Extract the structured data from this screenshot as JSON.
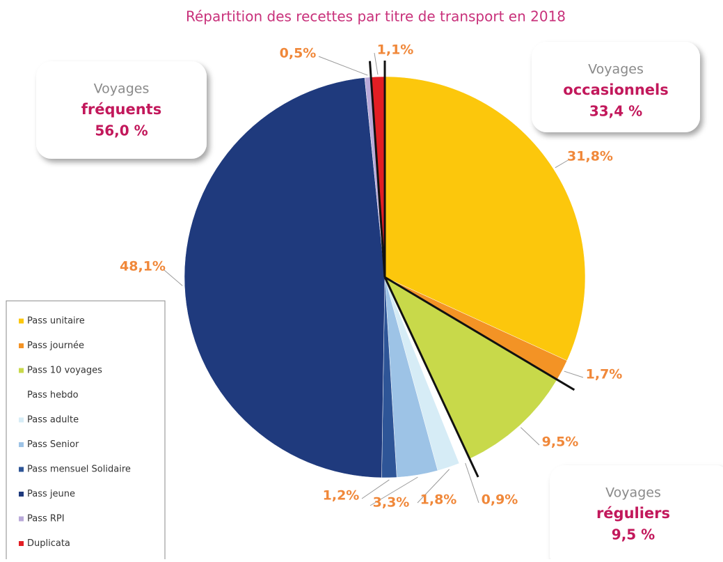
{
  "chart_data": {
    "type": "pie",
    "title": "Répartition des recettes par titre de transport en 2018",
    "categories": [
      "Pass unitaire",
      "Pass journée",
      "Pass 10 voyages",
      "Pass hebdo",
      "Pass adulte",
      "Pass Senior",
      "Pass mensuel Solidaire",
      "Pass jeune",
      "Pass RPI",
      "Duplicata"
    ],
    "values": [
      31.8,
      1.7,
      9.5,
      0.9,
      1.8,
      3.3,
      1.2,
      48.1,
      0.5,
      1.1
    ],
    "value_labels": [
      "31,8%",
      "1,7%",
      "9,5%",
      "0,9%",
      "1,8%",
      "3,3%",
      "1,2%",
      "48,1%",
      "0,5%",
      "1,1%"
    ],
    "colors": [
      "#fcc70c",
      "#f39325",
      "#c8d94a",
      "#ffffff",
      "#d6ecf6",
      "#9dc3e6",
      "#2e5597",
      "#1f3a7d",
      "#b9a9d9",
      "#e31e24"
    ],
    "groups": [
      {
        "line1": "Voyages",
        "name": "fréquents",
        "share": "56,0 %"
      },
      {
        "line1": "Voyages",
        "name": "occasionnels",
        "share": "33,4 %"
      },
      {
        "line1": "Voyages",
        "name": "réguliers",
        "share": "9,5 %"
      }
    ]
  }
}
